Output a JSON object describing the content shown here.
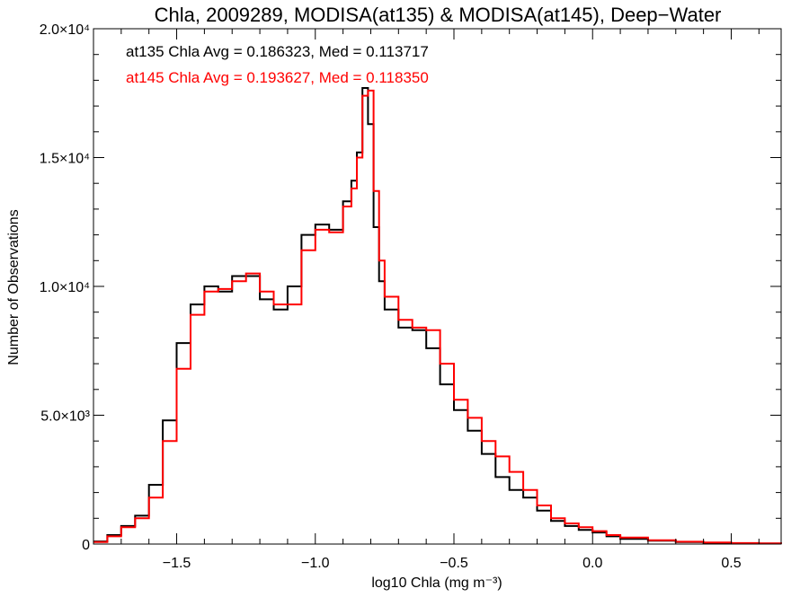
{
  "chart_data": {
    "type": "line",
    "title": "Chla, 2009289, MODISA(at135) & MODISA(at145), Deep−Water",
    "xlabel": "log10 Chla (mg m⁻³)",
    "ylabel": "Number of Observations",
    "xlim": [
      -1.8,
      0.68
    ],
    "ylim": [
      0,
      20000
    ],
    "grid": false,
    "x_ticks": [
      {
        "value": -1.5,
        "label": "−1.5"
      },
      {
        "value": -1.0,
        "label": "−1.0"
      },
      {
        "value": -0.5,
        "label": "−0.5"
      },
      {
        "value": 0.0,
        "label": "0.0"
      },
      {
        "value": 0.5,
        "label": "0.5"
      }
    ],
    "y_ticks": [
      {
        "value": 0,
        "label": "0"
      },
      {
        "value": 5000,
        "label": "5.0×10³"
      },
      {
        "value": 10000,
        "label": "1.0×10⁴"
      },
      {
        "value": 15000,
        "label": "1.5×10⁴"
      },
      {
        "value": 20000,
        "label": "2.0×10⁴"
      }
    ],
    "annotations": [
      {
        "text": "at135 Chla Avg = 0.186323, Med = 0.113717",
        "color": "#000000"
      },
      {
        "text": "at145 Chla Avg = 0.193627, Med = 0.118350",
        "color": "#ff0000"
      }
    ],
    "series": [
      {
        "color": "#000000",
        "x": [
          -1.8,
          -1.75,
          -1.7,
          -1.65,
          -1.6,
          -1.55,
          -1.5,
          -1.45,
          -1.4,
          -1.35,
          -1.3,
          -1.25,
          -1.2,
          -1.15,
          -1.1,
          -1.05,
          -1.0,
          -0.95,
          -0.9,
          -0.87,
          -0.85,
          -0.83,
          -0.81,
          -0.79,
          -0.77,
          -0.75,
          -0.7,
          -0.65,
          -0.6,
          -0.55,
          -0.5,
          -0.45,
          -0.4,
          -0.35,
          -0.3,
          -0.25,
          -0.2,
          -0.15,
          -0.1,
          -0.05,
          0.0,
          0.05,
          0.1,
          0.2,
          0.3,
          0.4,
          0.5,
          0.6,
          0.68
        ],
        "y": [
          100,
          350,
          700,
          1100,
          2300,
          4800,
          7800,
          9300,
          10000,
          9800,
          10400,
          10400,
          9500,
          9100,
          10000,
          12000,
          12400,
          12200,
          13300,
          14100,
          15200,
          17700,
          16300,
          12300,
          10200,
          9100,
          8400,
          8300,
          7600,
          6200,
          5200,
          4400,
          3500,
          2600,
          2100,
          1800,
          1300,
          900,
          700,
          550,
          450,
          300,
          200,
          130,
          80,
          50,
          30,
          20,
          10
        ]
      },
      {
        "color": "#ff0000",
        "x": [
          -1.8,
          -1.75,
          -1.7,
          -1.65,
          -1.6,
          -1.55,
          -1.5,
          -1.45,
          -1.4,
          -1.35,
          -1.3,
          -1.25,
          -1.2,
          -1.15,
          -1.1,
          -1.05,
          -1.0,
          -0.95,
          -0.9,
          -0.87,
          -0.85,
          -0.83,
          -0.81,
          -0.79,
          -0.77,
          -0.75,
          -0.7,
          -0.65,
          -0.6,
          -0.55,
          -0.5,
          -0.45,
          -0.4,
          -0.35,
          -0.3,
          -0.25,
          -0.2,
          -0.15,
          -0.1,
          -0.05,
          0.0,
          0.05,
          0.1,
          0.2,
          0.3,
          0.4,
          0.5,
          0.6,
          0.68
        ],
        "y": [
          80,
          300,
          650,
          1000,
          1800,
          4000,
          6800,
          8900,
          9800,
          9900,
          10200,
          10500,
          9800,
          9300,
          9300,
          11400,
          12200,
          12100,
          13100,
          13800,
          15000,
          17400,
          17600,
          13700,
          11000,
          9600,
          8700,
          8400,
          8300,
          7000,
          5600,
          4900,
          4000,
          3400,
          2800,
          2100,
          1500,
          1000,
          800,
          650,
          500,
          350,
          250,
          150,
          90,
          60,
          40,
          25,
          15
        ]
      }
    ]
  }
}
